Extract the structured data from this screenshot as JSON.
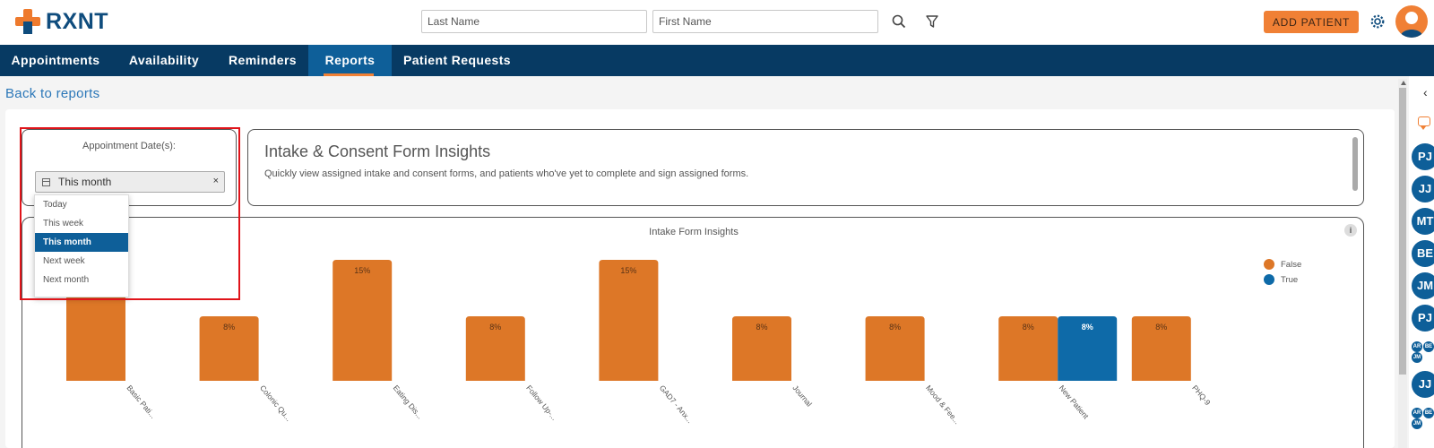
{
  "header": {
    "logo_text": "RXNT",
    "last_name_placeholder": "Last Name",
    "first_name_placeholder": "First Name",
    "add_patient_label": "ADD PATIENT"
  },
  "nav": {
    "items": [
      {
        "label": "Appointments"
      },
      {
        "label": "Availability"
      },
      {
        "label": "Reminders"
      },
      {
        "label": "Reports",
        "active": true
      },
      {
        "label": "Patient Requests"
      }
    ]
  },
  "back_link": "Back to reports",
  "date_filter": {
    "label": "Appointment Date(s):",
    "selected": "This month",
    "clear": "×",
    "options": [
      "Today",
      "This week",
      "This month",
      "Next week",
      "Next month"
    ]
  },
  "insights": {
    "title": "Intake & Consent Form Insights",
    "description": "Quickly view assigned intake and consent forms, and patients who've yet to complete and sign assigned forms."
  },
  "colors": {
    "accent": "#f08035",
    "nav": "#073a63",
    "false_series": "#dd7727",
    "true_series": "#0e6aa8"
  },
  "chart_data": {
    "type": "bar",
    "title": "Intake Form Insights",
    "categories": [
      "Basic Pati...",
      "Colonic Qu...",
      "Eating Dis...",
      "Follow Up-...",
      "GAD7 - Anx...",
      "Journal",
      "Mood & Fee...",
      "New Patient",
      "PHQ-9"
    ],
    "series": [
      {
        "name": "False",
        "color": "#dd7727",
        "values": [
          15,
          8,
          15,
          8,
          15,
          8,
          8,
          8,
          8
        ],
        "labels": [
          "",
          "8%",
          "15%",
          "8%",
          "15%",
          "8%",
          "8%",
          "8%",
          "8%"
        ]
      },
      {
        "name": "True",
        "color": "#0e6aa8",
        "values": [
          0,
          0,
          0,
          0,
          0,
          0,
          0,
          8,
          0
        ],
        "labels": [
          "",
          "",
          "",
          "",
          "",
          "",
          "",
          "8%",
          ""
        ]
      }
    ],
    "legend": "top-right",
    "info_icon": "i"
  },
  "right_panel": {
    "avatars_big": [
      "PJ",
      "JJ",
      "MT",
      "BE",
      "JM",
      "PJ"
    ],
    "avatar_cluster_1": [
      "AR",
      "BE",
      "JM"
    ],
    "avatar_big_2": "JJ",
    "avatar_cluster_2": [
      "AR",
      "BE",
      "JM"
    ]
  }
}
